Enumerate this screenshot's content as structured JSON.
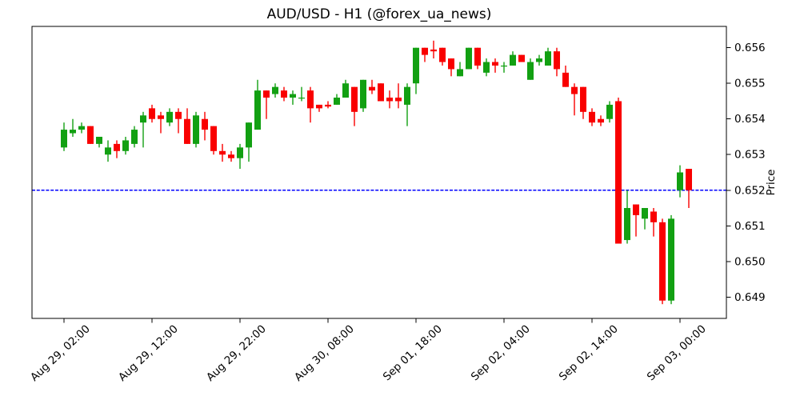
{
  "chart_data": {
    "type": "candlestick",
    "title": "AUD/USD - H1 (@forex_ua_news)",
    "xlabel": "",
    "ylabel": "Price",
    "grid": false,
    "legend": null,
    "ylim": [
      0.6484,
      0.6566
    ],
    "yticks": [
      0.649,
      0.65,
      0.651,
      0.652,
      0.653,
      0.654,
      0.655,
      0.656
    ],
    "ytick_format_decimals": 3,
    "xticks": [
      {
        "index": 0,
        "label": "Aug 29, 02:00"
      },
      {
        "index": 10,
        "label": "Aug 29, 12:00"
      },
      {
        "index": 20,
        "label": "Aug 29, 22:00"
      },
      {
        "index": 30,
        "label": "Aug 30, 08:00"
      },
      {
        "index": 40,
        "label": "Sep 01, 18:00"
      },
      {
        "index": 50,
        "label": "Sep 02, 04:00"
      },
      {
        "index": 60,
        "label": "Sep 02, 14:00"
      },
      {
        "index": 70,
        "label": "Sep 03, 00:00"
      }
    ],
    "hline": {
      "value": 0.652,
      "style": "dashed",
      "color": "#0000ff",
      "name": "support-level"
    },
    "colors": {
      "up": "#12a012",
      "down": "#f90000",
      "axis": "#000000",
      "background": "#ffffff"
    },
    "candles_format": [
      "open",
      "high",
      "low",
      "close"
    ],
    "candles": [
      [
        0.6532,
        0.6539,
        0.6531,
        0.6537
      ],
      [
        0.6536,
        0.654,
        0.6535,
        0.6537
      ],
      [
        0.6537,
        0.6539,
        0.6536,
        0.6538
      ],
      [
        0.6538,
        0.6538,
        0.6533,
        0.6533
      ],
      [
        0.6533,
        0.6535,
        0.6532,
        0.6535
      ],
      [
        0.653,
        0.6534,
        0.6528,
        0.6532
      ],
      [
        0.6533,
        0.6534,
        0.6529,
        0.6531
      ],
      [
        0.6531,
        0.6535,
        0.653,
        0.6534
      ],
      [
        0.6533,
        0.6538,
        0.6532,
        0.6537
      ],
      [
        0.6539,
        0.6542,
        0.6532,
        0.6541
      ],
      [
        0.6543,
        0.6544,
        0.6539,
        0.654
      ],
      [
        0.6541,
        0.6542,
        0.6536,
        0.654
      ],
      [
        0.6539,
        0.6543,
        0.6538,
        0.6542
      ],
      [
        0.6542,
        0.6543,
        0.6536,
        0.654
      ],
      [
        0.654,
        0.6543,
        0.6533,
        0.6533
      ],
      [
        0.6533,
        0.6542,
        0.6532,
        0.6541
      ],
      [
        0.654,
        0.6542,
        0.6534,
        0.6537
      ],
      [
        0.6538,
        0.6538,
        0.653,
        0.6531
      ],
      [
        0.6531,
        0.6533,
        0.6528,
        0.653
      ],
      [
        0.653,
        0.6531,
        0.6528,
        0.6529
      ],
      [
        0.6529,
        0.6533,
        0.6526,
        0.6532
      ],
      [
        0.6532,
        0.6539,
        0.6528,
        0.6539
      ],
      [
        0.6537,
        0.6551,
        0.6537,
        0.6548
      ],
      [
        0.6548,
        0.6548,
        0.654,
        0.6546
      ],
      [
        0.6547,
        0.655,
        0.6546,
        0.6549
      ],
      [
        0.6548,
        0.6549,
        0.6545,
        0.6546
      ],
      [
        0.6546,
        0.6548,
        0.6544,
        0.6547
      ],
      [
        0.6546,
        0.6549,
        0.6545,
        0.6546
      ],
      [
        0.6548,
        0.6549,
        0.6539,
        0.6543
      ],
      [
        0.6544,
        0.6544,
        0.6542,
        0.6543
      ],
      [
        0.6544,
        0.6545,
        0.6543,
        0.65435
      ],
      [
        0.6544,
        0.6547,
        0.6544,
        0.6546
      ],
      [
        0.6546,
        0.6551,
        0.6546,
        0.655
      ],
      [
        0.6549,
        0.6549,
        0.6538,
        0.6542
      ],
      [
        0.6543,
        0.6551,
        0.6542,
        0.6551
      ],
      [
        0.6549,
        0.6551,
        0.6547,
        0.6548
      ],
      [
        0.655,
        0.655,
        0.6545,
        0.6545
      ],
      [
        0.6546,
        0.6548,
        0.6543,
        0.6545
      ],
      [
        0.6546,
        0.655,
        0.6543,
        0.6545
      ],
      [
        0.6544,
        0.655,
        0.6538,
        0.6549
      ],
      [
        0.655,
        0.656,
        0.6547,
        0.656
      ],
      [
        0.656,
        0.656,
        0.6556,
        0.6558
      ],
      [
        0.65595,
        0.6562,
        0.6557,
        0.6559
      ],
      [
        0.656,
        0.656,
        0.6555,
        0.6556
      ],
      [
        0.6557,
        0.6557,
        0.6552,
        0.6554
      ],
      [
        0.6552,
        0.6556,
        0.6552,
        0.6554
      ],
      [
        0.6554,
        0.656,
        0.6554,
        0.656
      ],
      [
        0.656,
        0.656,
        0.6554,
        0.6555
      ],
      [
        0.6553,
        0.6557,
        0.6552,
        0.6556
      ],
      [
        0.6556,
        0.6557,
        0.6553,
        0.6555
      ],
      [
        0.6555,
        0.6556,
        0.6553,
        0.6555
      ],
      [
        0.6555,
        0.6559,
        0.6555,
        0.6558
      ],
      [
        0.6558,
        0.6558,
        0.6556,
        0.6556
      ],
      [
        0.6551,
        0.6557,
        0.6551,
        0.6556
      ],
      [
        0.6556,
        0.6558,
        0.6555,
        0.6557
      ],
      [
        0.6555,
        0.656,
        0.6555,
        0.6559
      ],
      [
        0.6559,
        0.656,
        0.6552,
        0.6554
      ],
      [
        0.6553,
        0.6555,
        0.6549,
        0.6549
      ],
      [
        0.6549,
        0.655,
        0.6541,
        0.6547
      ],
      [
        0.6549,
        0.6549,
        0.654,
        0.6542
      ],
      [
        0.6542,
        0.6543,
        0.6538,
        0.6539
      ],
      [
        0.654,
        0.6541,
        0.6538,
        0.6539
      ],
      [
        0.654,
        0.6545,
        0.6539,
        0.6544
      ],
      [
        0.6545,
        0.6546,
        0.6505,
        0.6505
      ],
      [
        0.6506,
        0.652,
        0.6505,
        0.6515
      ],
      [
        0.6516,
        0.6516,
        0.6507,
        0.6513
      ],
      [
        0.6512,
        0.6515,
        0.6509,
        0.6515
      ],
      [
        0.6514,
        0.6515,
        0.6507,
        0.6511
      ],
      [
        0.6511,
        0.6512,
        0.6488,
        0.6489
      ],
      [
        0.6489,
        0.6513,
        0.6488,
        0.6512
      ],
      [
        0.652,
        0.6527,
        0.6518,
        0.6525
      ],
      [
        0.6526,
        0.6526,
        0.6515,
        0.652
      ]
    ]
  }
}
